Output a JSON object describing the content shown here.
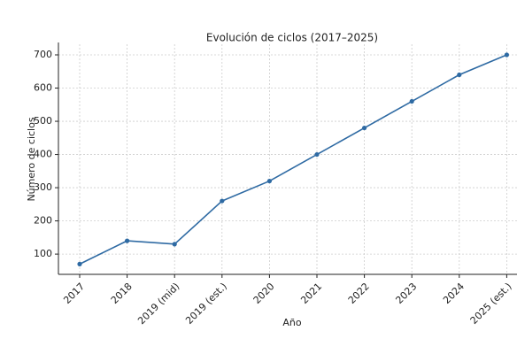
{
  "chart_data": {
    "type": "line",
    "title": "Evolución de ciclos (2017–2025)",
    "x_label": "Año",
    "y_label": "Número de ciclos",
    "categories": [
      "2017",
      "2018",
      "2019 (mid)",
      "2019 (est.)",
      "2020",
      "2021",
      "2022",
      "2023",
      "2024",
      "2025 (est.)"
    ],
    "series": [
      {
        "color": "#2e6aa3",
        "values": [
          70,
          140,
          130,
          260,
          320,
          400,
          480,
          560,
          640,
          700
        ]
      }
    ],
    "ylim": [
      39,
      732
    ],
    "yticks": [
      100,
      200,
      300,
      400,
      500,
      600,
      700
    ],
    "grid": true
  }
}
